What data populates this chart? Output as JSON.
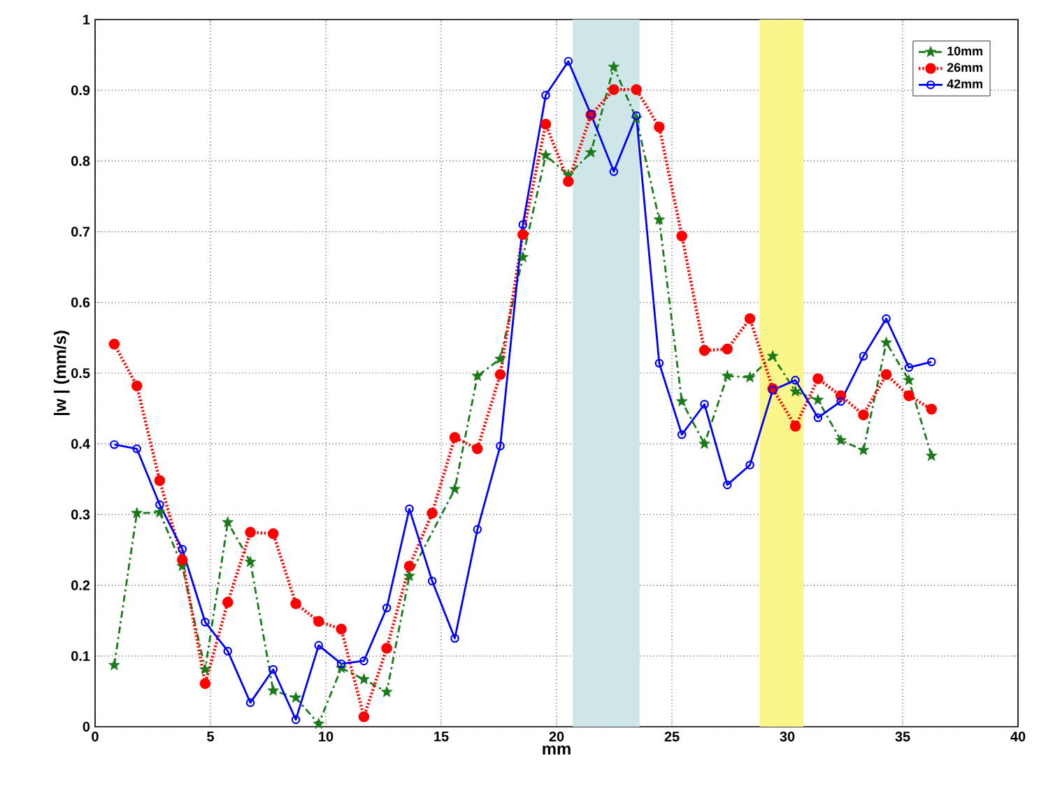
{
  "chart_data": {
    "type": "line",
    "xlabel": "mm",
    "ylabel": "|w | (mm/s)",
    "x": [
      0.83,
      1.81,
      2.8,
      3.78,
      4.77,
      5.75,
      6.73,
      7.72,
      8.7,
      9.69,
      10.67,
      11.65,
      12.64,
      13.62,
      14.61,
      15.59,
      16.57,
      17.56,
      18.54,
      19.53,
      20.51,
      21.49,
      22.48,
      23.46,
      24.45,
      25.43,
      26.41,
      27.4,
      28.38,
      29.37,
      30.35,
      31.33,
      32.32,
      33.3,
      34.29,
      35.27,
      36.25
    ],
    "series": [
      {
        "name": "10mm",
        "color": "#1a7a1a",
        "line_style": "dashdot",
        "marker": "star",
        "values": [
          0.087,
          0.302,
          0.303,
          0.227,
          0.081,
          0.289,
          0.233,
          0.051,
          0.041,
          0.004,
          0.083,
          0.067,
          0.049,
          0.213,
          null,
          0.336,
          0.496,
          0.52,
          0.664,
          0.808,
          0.78,
          0.812,
          0.933,
          0.86,
          0.717,
          0.46,
          0.4,
          0.496,
          0.494,
          0.524,
          0.474,
          0.462,
          0.405,
          0.391,
          0.543,
          0.49,
          0.383
        ]
      },
      {
        "name": "26mm",
        "color": "#ff0000",
        "line_style": "dotted",
        "marker": "circle",
        "values": [
          0.541,
          0.482,
          0.348,
          0.236,
          0.061,
          0.176,
          0.275,
          0.273,
          0.174,
          0.149,
          0.138,
          0.014,
          0.111,
          0.227,
          0.302,
          0.409,
          0.393,
          0.498,
          0.696,
          0.852,
          0.771,
          0.865,
          0.901,
          0.901,
          0.848,
          0.694,
          0.532,
          0.534,
          0.577,
          0.478,
          0.425,
          0.492,
          0.468,
          0.441,
          0.498,
          0.468,
          0.449
        ]
      },
      {
        "name": "42mm",
        "color": "#0000ff",
        "line_style": "solid",
        "marker": "open circle",
        "values": [
          0.399,
          0.393,
          0.314,
          0.251,
          0.148,
          0.107,
          0.034,
          0.081,
          0.01,
          0.115,
          0.089,
          0.093,
          0.168,
          0.308,
          0.206,
          0.125,
          0.279,
          0.397,
          0.71,
          0.893,
          0.941,
          0.866,
          0.785,
          0.864,
          0.514,
          0.413,
          0.456,
          0.342,
          0.37,
          0.476,
          0.49,
          0.437,
          0.46,
          0.524,
          0.577,
          0.508,
          0.516
        ]
      }
    ],
    "bands": [
      {
        "axis": "x",
        "from": 20.7,
        "to": 23.6,
        "color": "#cfe6e8"
      },
      {
        "axis": "x",
        "from": 28.8,
        "to": 30.7,
        "color": "#fbf68a"
      }
    ],
    "xlim": [
      0,
      40
    ],
    "xticks": [
      0,
      5,
      10,
      15,
      20,
      25,
      30,
      35,
      40
    ],
    "ylim": [
      0,
      1
    ],
    "yticks": [
      0,
      0.1,
      0.2,
      0.3,
      0.4,
      0.5,
      0.6,
      0.7,
      0.8,
      0.9,
      1
    ],
    "grid": true,
    "legend": "top right"
  }
}
